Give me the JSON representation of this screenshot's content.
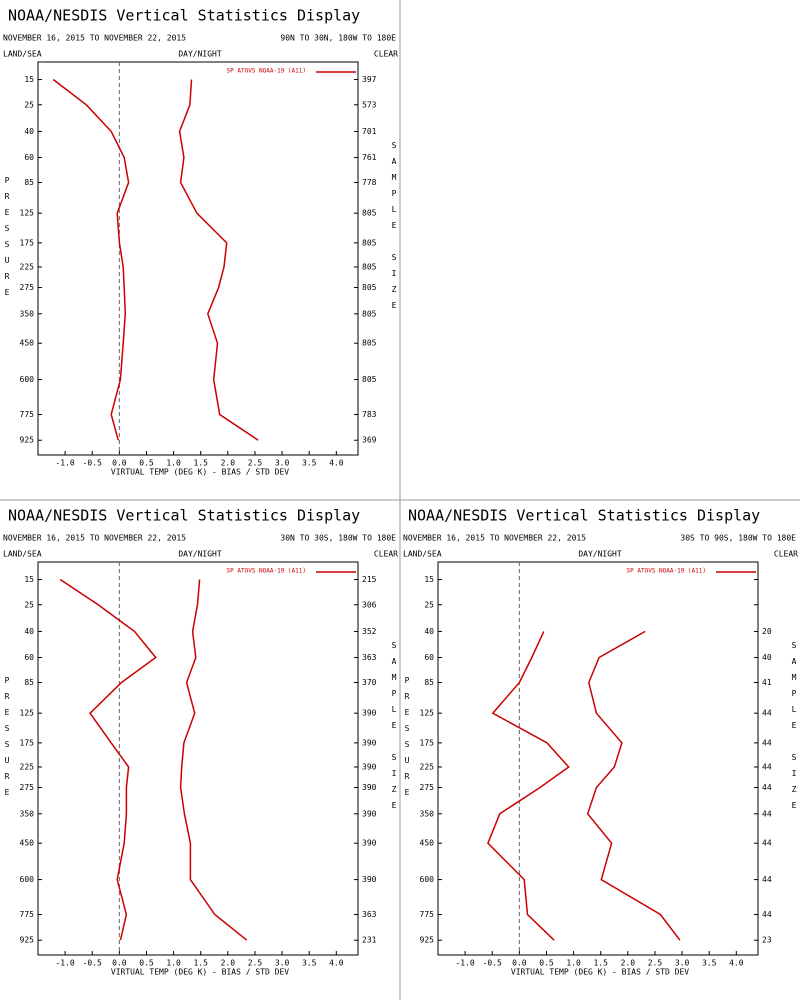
{
  "chart_data": [
    {
      "type": "line",
      "title": "NOAA/NESDIS Vertical Statistics Display",
      "subtitle": "NOVEMBER 16, 2015 TO NOVEMBER 22, 2015",
      "region": "90N TO 30N, 180W TO 180E",
      "left_label": "LAND/SEA",
      "center_label": "DAY/NIGHT",
      "right_label": "CLEAR",
      "ylabel": "PRESSURE",
      "y2label": "SAMPLE SIZE",
      "xlabel": "VIRTUAL TEMP (DEG K) - BIAS / STD DEV",
      "y": [
        15,
        25,
        40,
        60,
        85,
        125,
        175,
        225,
        275,
        350,
        450,
        600,
        775,
        925
      ],
      "ylim": [
        1020,
        10
      ],
      "yticks": [
        15,
        25,
        40,
        60,
        85,
        125,
        175,
        225,
        275,
        350,
        450,
        600,
        775,
        925
      ],
      "xlim": [
        -1.5,
        4.4
      ],
      "xticks": [
        {
          "value": -1,
          "label": "-1.0"
        },
        {
          "value": -0.5,
          "label": "-0.5"
        },
        {
          "value": 0,
          "label": "0.0"
        },
        {
          "value": 0.5,
          "label": "0.5"
        },
        {
          "value": 1,
          "label": "1.0"
        },
        {
          "value": 1.5,
          "label": "1.5"
        },
        {
          "value": 2,
          "label": "2.0"
        },
        {
          "value": 2.5,
          "label": "2.5"
        },
        {
          "value": 3,
          "label": "3.0"
        },
        {
          "value": 3.5,
          "label": "3.5"
        },
        {
          "value": 4,
          "label": "4.0"
        }
      ],
      "series": [
        {
          "name": "SP ATOVS NOAA-19 (A11)",
          "color": "#cc0000",
          "bias": [
            -1.22,
            -0.61,
            -0.15,
            0.09,
            0.17,
            -0.04,
            0.0,
            0.07,
            0.09,
            0.11,
            0.07,
            0.02,
            -0.15,
            -0.02
          ],
          "std_dev": [
            1.33,
            1.3,
            1.11,
            1.19,
            1.13,
            1.43,
            1.98,
            1.93,
            1.83,
            1.63,
            1.81,
            1.74,
            1.85,
            2.56
          ]
        }
      ],
      "sample_size": [
        397,
        573,
        701,
        761,
        778,
        805,
        805,
        805,
        805,
        805,
        805,
        805,
        783,
        369
      ]
    },
    {
      "type": "line",
      "title": "NOAA/NESDIS Vertical Statistics Display",
      "subtitle": "NOVEMBER 16, 2015 TO NOVEMBER 22, 2015",
      "region": "30N TO 30S, 180W TO 180E",
      "left_label": "LAND/SEA",
      "center_label": "DAY/NIGHT",
      "right_label": "CLEAR",
      "ylabel": "PRESSURE",
      "y2label": "SAMPLE SIZE",
      "xlabel": "VIRTUAL TEMP (DEG K) - BIAS / STD DEV",
      "y": [
        15,
        25,
        40,
        60,
        85,
        125,
        175,
        225,
        275,
        350,
        450,
        600,
        775,
        925
      ],
      "ylim": [
        1020,
        10
      ],
      "yticks": [
        15,
        25,
        40,
        60,
        85,
        125,
        175,
        225,
        275,
        350,
        450,
        600,
        775,
        925
      ],
      "xlim": [
        -1.5,
        4.4
      ],
      "xticks": [
        {
          "value": -1,
          "label": "-1.0"
        },
        {
          "value": -0.5,
          "label": "-0.5"
        },
        {
          "value": 0,
          "label": "0.0"
        },
        {
          "value": 0.5,
          "label": "0.5"
        },
        {
          "value": 1,
          "label": "1.0"
        },
        {
          "value": 1.5,
          "label": "1.5"
        },
        {
          "value": 2,
          "label": "2.0"
        },
        {
          "value": 2.5,
          "label": "2.5"
        },
        {
          "value": 3,
          "label": "3.0"
        },
        {
          "value": 3.5,
          "label": "3.5"
        },
        {
          "value": 4,
          "label": "4.0"
        }
      ],
      "series": [
        {
          "name": "SP ATOVS NOAA-19 (A11)",
          "color": "#cc0000",
          "bias": [
            -1.09,
            -0.39,
            0.28,
            0.67,
            0.04,
            -0.54,
            -0.15,
            0.17,
            0.13,
            0.13,
            0.09,
            -0.04,
            0.13,
            0.02
          ],
          "std_dev": [
            1.48,
            1.44,
            1.35,
            1.41,
            1.24,
            1.39,
            1.19,
            1.15,
            1.13,
            1.2,
            1.31,
            1.31,
            1.76,
            2.35
          ]
        }
      ],
      "sample_size": [
        215,
        306,
        352,
        363,
        370,
        390,
        390,
        390,
        390,
        390,
        390,
        390,
        363,
        231
      ]
    },
    {
      "type": "line",
      "title": "NOAA/NESDIS Vertical Statistics Display",
      "subtitle": "NOVEMBER 16, 2015 TO NOVEMBER 22, 2015",
      "region": "30S TO 90S, 180W TO 180E",
      "left_label": "LAND/SEA",
      "center_label": "DAY/NIGHT",
      "right_label": "CLEAR",
      "ylabel": "PRESSURE",
      "y2label": "SAMPLE SIZE",
      "xlabel": "VIRTUAL TEMP (DEG K) - BIAS / STD DEV",
      "y": [
        15,
        25,
        40,
        60,
        85,
        125,
        175,
        225,
        275,
        350,
        450,
        600,
        775,
        925
      ],
      "ylim": [
        1020,
        10
      ],
      "yticks": [
        15,
        25,
        40,
        60,
        85,
        125,
        175,
        225,
        275,
        350,
        450,
        600,
        775,
        925
      ],
      "xlim": [
        -1.5,
        4.4
      ],
      "xticks": [
        {
          "value": -1,
          "label": "-1.0"
        },
        {
          "value": -0.5,
          "label": "-0.5"
        },
        {
          "value": 0,
          "label": "0.0"
        },
        {
          "value": 0.5,
          "label": "0.5"
        },
        {
          "value": 1,
          "label": "1.0"
        },
        {
          "value": 1.5,
          "label": "1.5"
        },
        {
          "value": 2,
          "label": "2.0"
        },
        {
          "value": 2.5,
          "label": "2.5"
        },
        {
          "value": 3,
          "label": "3.0"
        },
        {
          "value": 3.5,
          "label": "3.5"
        },
        {
          "value": 4,
          "label": "4.0"
        }
      ],
      "series": [
        {
          "name": "SP ATOVS NOAA-19 (A11)",
          "color": "#cc0000",
          "bias": [
            null,
            null,
            0.45,
            0.23,
            0.0,
            -0.49,
            0.51,
            0.91,
            0.38,
            -0.36,
            -0.58,
            0.09,
            0.15,
            0.64
          ],
          "std_dev": [
            null,
            null,
            2.32,
            1.47,
            1.28,
            1.42,
            1.89,
            1.75,
            1.42,
            1.26,
            1.7,
            1.51,
            2.6,
            2.96
          ]
        }
      ],
      "sample_size": [
        null,
        null,
        20,
        40,
        41,
        44,
        44,
        44,
        44,
        44,
        44,
        44,
        44,
        23
      ]
    }
  ]
}
